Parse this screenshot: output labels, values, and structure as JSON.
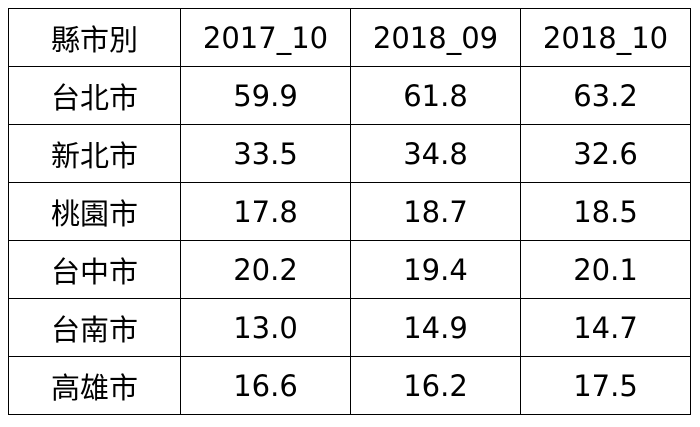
{
  "table": {
    "header": [
      "縣市別",
      "2017_10",
      "2018_09",
      "2018_10"
    ],
    "rows": [
      [
        "台北市",
        "59.9",
        "61.8",
        "63.2"
      ],
      [
        "新北市",
        "33.5",
        "34.8",
        "32.6"
      ],
      [
        "桃園市",
        "17.8",
        "18.7",
        "18.5"
      ],
      [
        "台中市",
        "20.2",
        "19.4",
        "20.1"
      ],
      [
        "台南市",
        "13.0",
        "14.9",
        "14.7"
      ],
      [
        "高雄市",
        "16.6",
        "16.2",
        "17.5"
      ]
    ]
  }
}
